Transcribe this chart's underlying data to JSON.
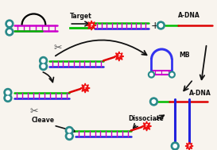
{
  "colors": {
    "blue_strand": "#2222dd",
    "red_strand": "#dd0000",
    "green_strand": "#00bb00",
    "purple_rungs": "#cc00cc",
    "quencher_fill": "#2a8a8a",
    "quencher_inner": "#ffffff",
    "fluorophore": "#ee1111",
    "mb_loop": "#3333ee",
    "arrow_color": "#111111",
    "text_color": "#111111",
    "bg": "#f8f4ee"
  },
  "labels": {
    "target": "Target",
    "adna_top": "A-DNA",
    "mb": "MB",
    "adna_mid": "A-DNA",
    "cleave": "Cleave",
    "dissociate": "Dissociate"
  },
  "fontsize": 5.5
}
